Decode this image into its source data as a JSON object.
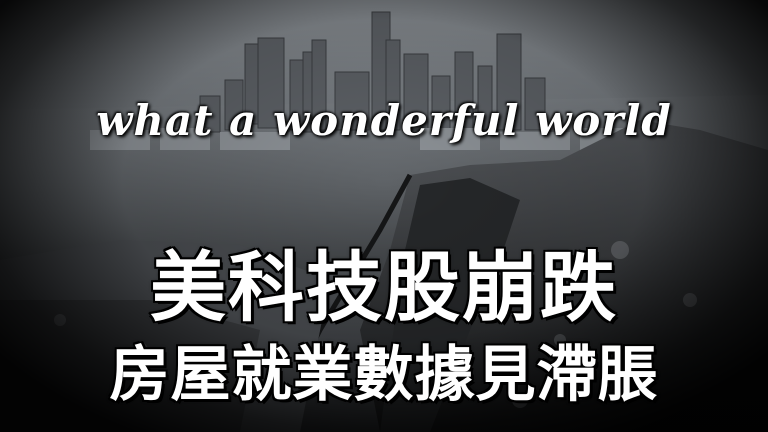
{
  "thumbnail": {
    "tagline": "what a wonderful world",
    "headline_line1": "美科技股崩跌",
    "headline_line2": "房屋就業數據見滯脹",
    "background_image": "cracked-city-skyline-image",
    "colors": {
      "text": "#ffffff",
      "text_outline": "#000000",
      "background": "#1a1a1a"
    }
  }
}
